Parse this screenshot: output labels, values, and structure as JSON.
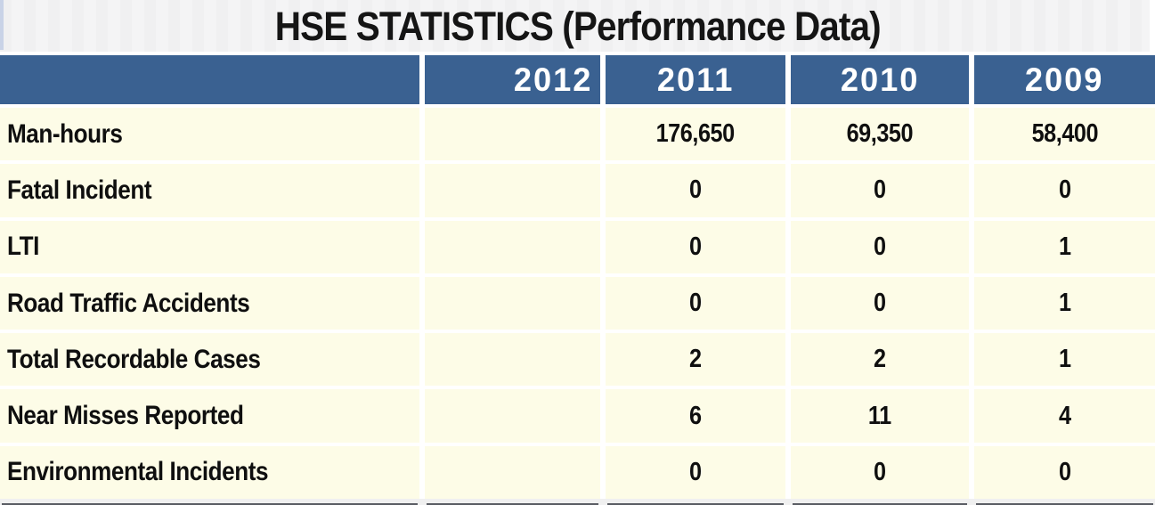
{
  "title": "HSE STATISTICS (Performance Data)",
  "columns": [
    "",
    "2012",
    "2011",
    "2010",
    "2009"
  ],
  "rows": [
    {
      "label": "Man-hours",
      "values": [
        "",
        "176,650",
        "69,350",
        "58,400"
      ]
    },
    {
      "label": "Fatal Incident",
      "values": [
        "",
        "0",
        "0",
        "0"
      ]
    },
    {
      "label": "LTI",
      "values": [
        "",
        "0",
        "0",
        "1"
      ]
    },
    {
      "label": "Road Traffic Accidents",
      "values": [
        "",
        "0",
        "0",
        "1"
      ]
    },
    {
      "label": "Total Recordable Cases",
      "values": [
        "",
        "2",
        "2",
        "1"
      ]
    },
    {
      "label": "Near Misses Reported",
      "values": [
        "",
        "6",
        "11",
        "4"
      ]
    },
    {
      "label": "Environmental Incidents",
      "values": [
        "",
        "0",
        "0",
        "0"
      ]
    }
  ],
  "chart_data": {
    "type": "table",
    "title": "HSE STATISTICS (Performance Data)",
    "columns": [
      "2012",
      "2011",
      "2010",
      "2009"
    ],
    "row_labels": [
      "Man-hours",
      "Fatal Incident",
      "LTI",
      "Road Traffic Accidents",
      "Total Recordable Cases",
      "Near Misses Reported",
      "Environmental Incidents"
    ],
    "cells": [
      [
        null,
        176650,
        69350,
        58400
      ],
      [
        null,
        0,
        0,
        0
      ],
      [
        null,
        0,
        0,
        1
      ],
      [
        null,
        0,
        0,
        1
      ],
      [
        null,
        2,
        2,
        1
      ],
      [
        null,
        6,
        11,
        4
      ],
      [
        null,
        0,
        0,
        0
      ]
    ],
    "notes": "2012 column is blank in the screenshot"
  },
  "colors": {
    "header_bg": "#3a6191",
    "header_text": "#ffffff",
    "row_bg": "#fdfce7",
    "body_text": "#0f0f0f",
    "title_band_bg": "#f4f4f5",
    "left_strip": "#c9d3e7",
    "gap_white": "#ffffff",
    "bottom_line": "#3e424a"
  }
}
